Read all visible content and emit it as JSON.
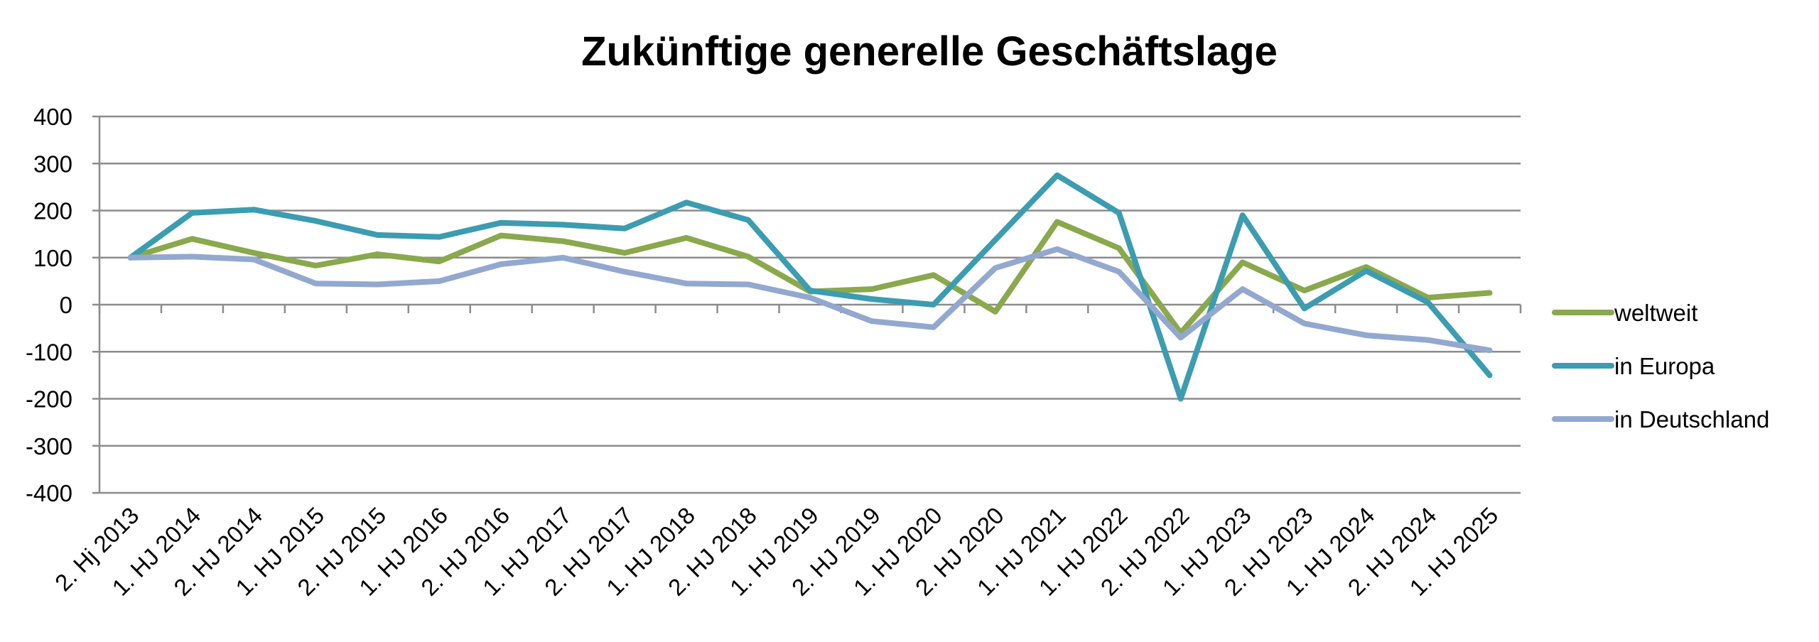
{
  "chart_data": {
    "type": "line",
    "title": "Zukünftige generelle Geschäftslage",
    "xlabel": "",
    "ylabel": "",
    "ylim": [
      -400,
      400
    ],
    "yticks": [
      400,
      300,
      200,
      100,
      0,
      -100,
      -200,
      -300,
      -400
    ],
    "grid": true,
    "legend_position": "right",
    "categories": [
      "2. Hj 2013",
      "1. HJ 2014",
      "2. HJ 2014",
      "1. HJ 2015",
      "2. HJ 2015",
      "1. HJ 2016",
      "2. HJ 2016",
      "1. HJ 2017",
      "2. HJ 2017",
      "1. HJ 2018",
      "2. HJ 2018",
      "1. HJ 2019",
      "2. HJ 2019",
      "1. HJ 2020",
      "2. HJ 2020",
      "1. HJ 2021",
      "1. HJ 2022",
      "2. HJ 2022",
      "1. HJ 2023",
      "2. HJ 2023",
      "1. HJ 2024",
      "2. HJ 2024",
      "1. HJ 2025"
    ],
    "series": [
      {
        "name": "weltweit",
        "color": "#8aa84c",
        "values": [
          100,
          140,
          110,
          83,
          107,
          92,
          147,
          135,
          110,
          142,
          102,
          28,
          33,
          63,
          -15,
          176,
          120,
          -60,
          90,
          30,
          80,
          15,
          25
        ]
      },
      {
        "name": "in Europa",
        "color": "#3c9cb0",
        "values": [
          100,
          195,
          202,
          178,
          148,
          144,
          174,
          170,
          162,
          217,
          180,
          30,
          12,
          0,
          138,
          275,
          195,
          -200,
          190,
          -8,
          72,
          5,
          -150
        ]
      },
      {
        "name": "in Deutschland",
        "color": "#93a8cf",
        "values": [
          100,
          102,
          96,
          45,
          43,
          50,
          86,
          100,
          70,
          45,
          43,
          15,
          -35,
          -48,
          78,
          118,
          70,
          -70,
          33,
          -40,
          -65,
          -75,
          -97
        ]
      }
    ]
  }
}
